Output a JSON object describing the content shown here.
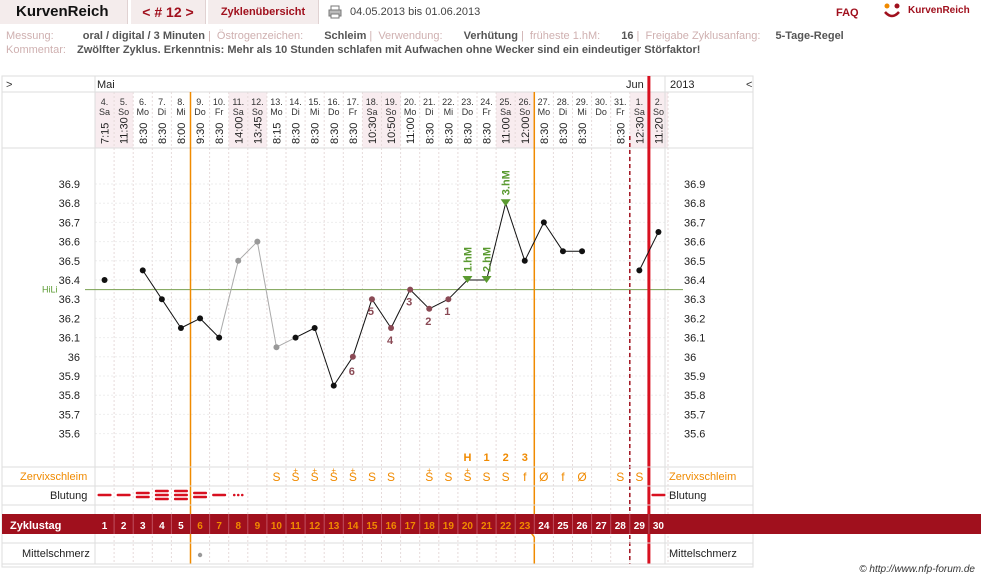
{
  "header": {
    "brand": "KurvenReich",
    "cycle_nav": "< # 12 >",
    "cycle_overview": "Zyklenübersicht",
    "date_range": "04.05.2013 bis 01.06.2013",
    "faq": "FAQ",
    "logo": "KurvenReich"
  },
  "info": {
    "measurement_label": "Messung:",
    "measurement_value": "oral / digital / 3 Minuten",
    "estrogen_label": "Östrogenzeichen:",
    "estrogen_value": "Schleim",
    "usage_label": "Verwendung:",
    "usage_value": "Verhütung",
    "earliest_label": "früheste 1.hM:",
    "earliest_value": "16",
    "release_label": "Freigabe Zyklusanfang:",
    "release_value": "5-Tage-Regel",
    "comment_label": "Kommentar:",
    "comment_value": "Zwölfter Zyklus. Erkenntnis: Mehr als 10 Stunden schlafen mit Aufwachen ohne Wecker sind ein eindeutiger Störfaktor!"
  },
  "chart_data": {
    "type": "line",
    "nav_left": ">",
    "nav_right": "<",
    "month_start": "Mai",
    "month_end": "Jun",
    "year": "2013",
    "days": [
      {
        "date": "4.",
        "wd": "Sa",
        "time": "7:15",
        "temp": 36.4,
        "cycle": "1",
        "blood": "1",
        "mucus": "",
        "weekend": true
      },
      {
        "date": "5.",
        "wd": "So",
        "time": "11:30",
        "temp": null,
        "cycle": "2",
        "blood": "1",
        "mucus": "",
        "weekend": true
      },
      {
        "date": "6.",
        "wd": "Mo",
        "time": "8:30",
        "temp": 36.45,
        "cycle": "3",
        "blood": "2",
        "mucus": "",
        "weekend": false
      },
      {
        "date": "7.",
        "wd": "Di",
        "time": "8:30",
        "temp": 36.3,
        "cycle": "4",
        "blood": "3",
        "mucus": "",
        "weekend": false
      },
      {
        "date": "8.",
        "wd": "Mi",
        "time": "8:00",
        "temp": 36.15,
        "cycle": "5",
        "blood": "3",
        "mucus": "",
        "weekend": false
      },
      {
        "date": "9.",
        "wd": "Do",
        "time": "9:30",
        "temp": 36.2,
        "cycle": "6",
        "blood": "2",
        "mucus": "",
        "weekend": false
      },
      {
        "date": "10.",
        "wd": "Fr",
        "time": "8:30",
        "temp": 36.1,
        "cycle": "7",
        "blood": "1",
        "mucus": "",
        "weekend": false
      },
      {
        "date": "11.",
        "wd": "Sa",
        "time": "14:00",
        "temp": 36.5,
        "cycle": "8",
        "blood": "dots",
        "mucus": "",
        "weekend": true
      },
      {
        "date": "12.",
        "wd": "So",
        "time": "13:45",
        "temp": 36.6,
        "cycle": "9",
        "blood": "",
        "mucus": "",
        "weekend": true
      },
      {
        "date": "13.",
        "wd": "Mo",
        "time": "8:15",
        "temp": 36.05,
        "cycle": "10",
        "blood": "",
        "mucus": "S",
        "weekend": false
      },
      {
        "date": "14.",
        "wd": "Di",
        "time": "8:30",
        "temp": 36.1,
        "cycle": "11",
        "blood": "",
        "mucus": "S+",
        "weekend": false
      },
      {
        "date": "15.",
        "wd": "Mi",
        "time": "8:30",
        "temp": 36.15,
        "cycle": "12",
        "blood": "",
        "mucus": "S+",
        "weekend": false
      },
      {
        "date": "16.",
        "wd": "Do",
        "time": "8:30",
        "temp": 35.85,
        "cycle": "13",
        "blood": "",
        "mucus": "S+",
        "weekend": false
      },
      {
        "date": "17.",
        "wd": "Fr",
        "time": "8:30",
        "temp": 36.0,
        "cycle": "14",
        "blood": "",
        "mucus": "S+",
        "weekend": false
      },
      {
        "date": "18.",
        "wd": "Sa",
        "time": "10:30",
        "temp": 36.3,
        "cycle": "15",
        "blood": "",
        "mucus": "S",
        "weekend": true
      },
      {
        "date": "19.",
        "wd": "So",
        "time": "10:50",
        "temp": 36.15,
        "cycle": "16",
        "blood": "",
        "mucus": "S",
        "weekend": true
      },
      {
        "date": "20.",
        "wd": "Mo",
        "time": "11:00",
        "temp": 36.35,
        "cycle": "17",
        "blood": "",
        "mucus": "",
        "weekend": false
      },
      {
        "date": "21.",
        "wd": "Di",
        "time": "8:30",
        "temp": 36.25,
        "cycle": "18",
        "blood": "",
        "mucus": "S+",
        "weekend": false
      },
      {
        "date": "22.",
        "wd": "Mi",
        "time": "8:30",
        "temp": 36.3,
        "cycle": "19",
        "blood": "",
        "mucus": "S",
        "weekend": false
      },
      {
        "date": "23.",
        "wd": "Do",
        "time": "8:30",
        "temp": 36.4,
        "cycle": "20",
        "blood": "",
        "mucus": "S+",
        "weekend": false
      },
      {
        "date": "24.",
        "wd": "Fr",
        "time": "8:30",
        "temp": 36.4,
        "cycle": "21",
        "blood": "",
        "mucus": "S",
        "weekend": false
      },
      {
        "date": "25.",
        "wd": "Sa",
        "time": "11:00",
        "temp": 36.8,
        "cycle": "22",
        "blood": "",
        "mucus": "S",
        "weekend": true
      },
      {
        "date": "26.",
        "wd": "So",
        "time": "12:00",
        "temp": 36.5,
        "cycle": "23",
        "blood": "",
        "mucus": "f",
        "weekend": true
      },
      {
        "date": "27.",
        "wd": "Mo",
        "time": "8:30",
        "temp": 36.7,
        "cycle": "24",
        "blood": "",
        "mucus": "Ø",
        "weekend": false
      },
      {
        "date": "28.",
        "wd": "Di",
        "time": "8:30",
        "temp": 36.55,
        "cycle": "25",
        "blood": "",
        "mucus": "f",
        "weekend": false
      },
      {
        "date": "29.",
        "wd": "Mi",
        "time": "8:30",
        "temp": 36.55,
        "cycle": "26",
        "blood": "",
        "mucus": "Ø",
        "weekend": false
      },
      {
        "date": "30.",
        "wd": "Do",
        "time": "",
        "temp": null,
        "cycle": "27",
        "blood": "",
        "mucus": "",
        "weekend": false
      },
      {
        "date": "31.",
        "wd": "Fr",
        "time": "8:30",
        "temp": null,
        "cycle": "28",
        "blood": "",
        "mucus": "S",
        "weekend": false
      },
      {
        "date": "1.",
        "wd": "Sa",
        "time": "12:30",
        "temp": 36.45,
        "cycle": "29",
        "blood": "",
        "mucus": "S",
        "weekend": true
      },
      {
        "date": "2.",
        "wd": "So",
        "time": "11:20",
        "temp": 36.65,
        "cycle": "30",
        "blood": "1",
        "mucus": "",
        "weekend": true
      }
    ],
    "grey_segment": [
      7,
      8,
      9
    ],
    "y_ticks": [
      "36.9",
      "36.8",
      "36.7",
      "36.6",
      "36.5",
      "36.4",
      "36.3",
      "36.2",
      "36.1",
      "36",
      "35.9",
      "35.8",
      "35.7",
      "35.6"
    ],
    "ylim": [
      35.5,
      37.0
    ],
    "hili_label": "HiLi",
    "hili_value": 36.35,
    "count_labels": [
      {
        "day": 14,
        "text": "5"
      },
      {
        "day": 15,
        "text": "4"
      },
      {
        "day": 16,
        "text": "3"
      },
      {
        "day": 17,
        "text": "2"
      },
      {
        "day": 18,
        "text": "1"
      },
      {
        "day": 13,
        "text": "6"
      }
    ],
    "hm_labels": [
      {
        "day": 19,
        "text": "1.hM"
      },
      {
        "day": 20,
        "text": "2.hM"
      },
      {
        "day": 21,
        "text": "3.hM"
      }
    ],
    "mucus_peak_labels": [
      {
        "day": 19,
        "text": "H"
      },
      {
        "day": 20,
        "text": "1"
      },
      {
        "day": 21,
        "text": "2"
      },
      {
        "day": 22,
        "text": "3"
      }
    ],
    "rows": {
      "mucus": "Zervixschleim",
      "blood": "Blutung",
      "cycle": "Zyklustag",
      "pain": "Mittelschmerz"
    },
    "pain_dot_day": 5
  },
  "colors": {
    "accent": "#a0101d",
    "orange": "#f08a00",
    "green": "#5a9a30",
    "weekend": "#f8ecef"
  },
  "footer": {
    "copyright": "© http://www.nfp-forum.de"
  }
}
